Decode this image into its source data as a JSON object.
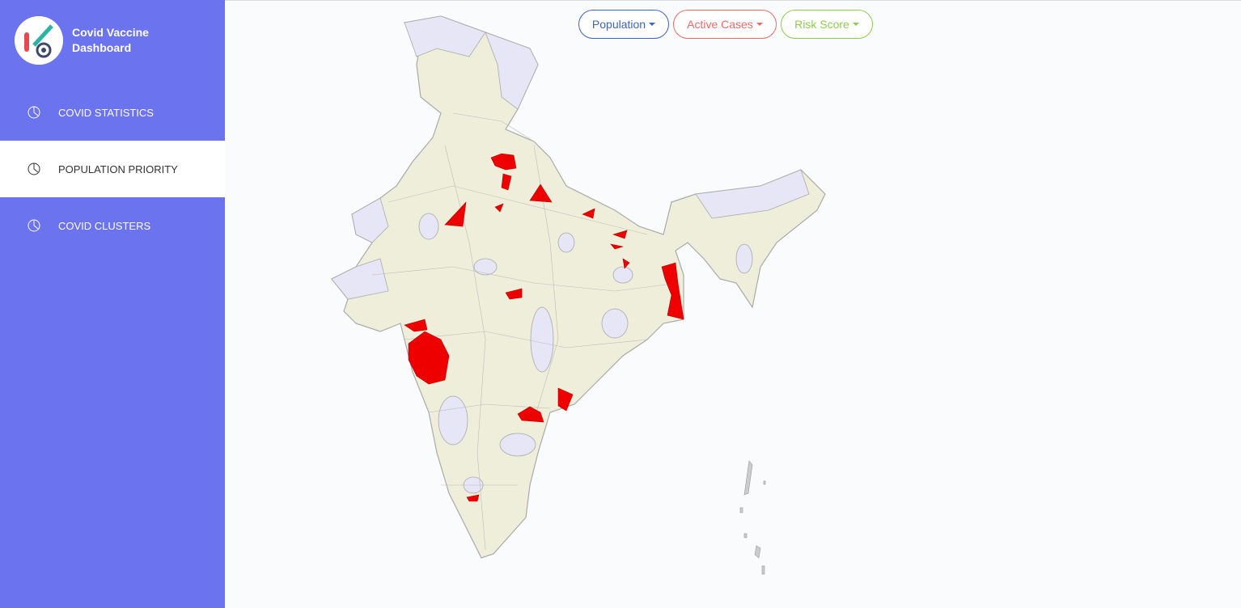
{
  "sidebar": {
    "title": "Covid Vaccine Dashboard",
    "nav": [
      "COVID STATISTICS",
      "POPULATION PRIORITY",
      "COVID CLUSTERS"
    ]
  },
  "toolbar": {
    "buttons": [
      "Population",
      "Active Cases",
      "Risk Score"
    ]
  }
}
